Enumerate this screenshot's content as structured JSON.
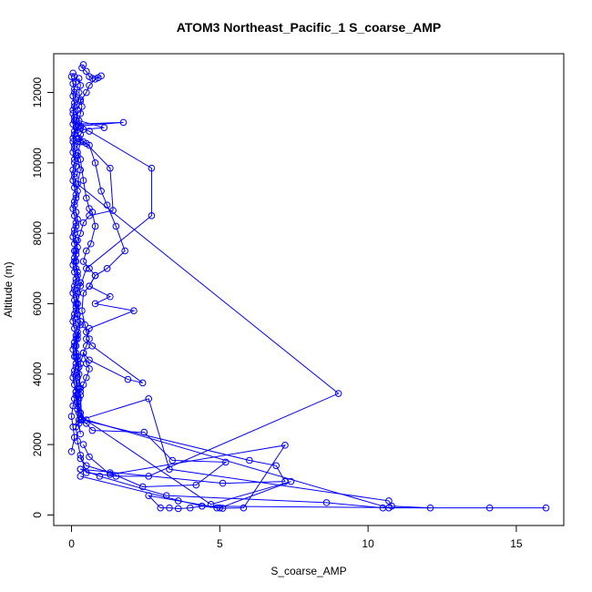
{
  "chart_data": {
    "type": "scatter",
    "title": "ATOM3 Northeast_Pacific_1 S_coarse_AMP",
    "xlabel": "S_coarse_AMP",
    "ylabel": "Altitude (m)",
    "xlim": [
      -0.6,
      16.6
    ],
    "ylim": [
      -300,
      13100
    ],
    "xticks": [
      0,
      5,
      10,
      15
    ],
    "xtick_labels": [
      "0",
      "5",
      "10",
      "15"
    ],
    "yticks": [
      0,
      2000,
      4000,
      6000,
      8000,
      10000,
      12000
    ],
    "ytick_labels": [
      "0",
      "2000",
      "4000",
      "6000",
      "8000",
      "10000",
      "12000"
    ],
    "grid": false,
    "color": "#0000ff",
    "marker": "open-circle",
    "connected": true,
    "series": [
      {
        "points": [
          [
            0.4,
            12790
          ],
          [
            0.35,
            12700
          ],
          [
            0.5,
            12600
          ],
          [
            0.6,
            12450
          ],
          [
            0.7,
            12400
          ],
          [
            0.9,
            12420
          ],
          [
            1.0,
            12470
          ],
          [
            0.8,
            12380
          ],
          [
            0.6,
            12200
          ],
          [
            0.5,
            12000
          ],
          [
            0.3,
            11750
          ],
          [
            0.2,
            11500
          ],
          [
            0.15,
            11200
          ],
          [
            0.2,
            11100
          ],
          [
            1.75,
            11150
          ],
          [
            0.3,
            11050
          ],
          [
            0.2,
            11000
          ],
          [
            0.1,
            10800
          ],
          [
            0.2,
            10600
          ],
          [
            0.5,
            10550
          ],
          [
            1.3,
            9850
          ],
          [
            1.4,
            8650
          ],
          [
            0.6,
            8500
          ],
          [
            0.4,
            8300
          ],
          [
            0.3,
            8000
          ],
          [
            0.2,
            7800
          ],
          [
            0.1,
            7500
          ],
          [
            0.15,
            7200
          ],
          [
            0.2,
            6900
          ],
          [
            0.3,
            6600
          ],
          [
            0.2,
            6300
          ],
          [
            0.15,
            6000
          ],
          [
            0.2,
            5700
          ],
          [
            0.3,
            5400
          ],
          [
            0.2,
            5100
          ],
          [
            0.15,
            4800
          ],
          [
            0.2,
            4500
          ],
          [
            0.25,
            4200
          ],
          [
            0.2,
            3900
          ],
          [
            0.15,
            3500
          ],
          [
            0.2,
            3200
          ],
          [
            0.3,
            2900
          ],
          [
            0.25,
            2700
          ],
          [
            0.5,
            2600
          ],
          [
            0.7,
            2400
          ],
          [
            2.45,
            2350
          ],
          [
            3.4,
            1550
          ],
          [
            5.2,
            1500
          ],
          [
            4.2,
            850
          ],
          [
            2.4,
            800
          ],
          [
            1.3,
            1200
          ],
          [
            0.5,
            1400
          ],
          [
            0.3,
            1600
          ]
        ]
      },
      {
        "points": [
          [
            0.3,
            11000
          ],
          [
            0.6,
            10900
          ],
          [
            2.7,
            9850
          ],
          [
            2.7,
            8500
          ],
          [
            0.5,
            7000
          ],
          [
            0.3,
            6500
          ],
          [
            0.2,
            6000
          ],
          [
            0.3,
            5500
          ],
          [
            0.2,
            5000
          ],
          [
            0.15,
            4500
          ],
          [
            0.25,
            4000
          ],
          [
            0.3,
            3600
          ],
          [
            0.2,
            3400
          ],
          [
            0.3,
            2800
          ],
          [
            4.7,
            300
          ],
          [
            7.4,
            950
          ],
          [
            5.0,
            200
          ],
          [
            3.6,
            400
          ],
          [
            2.6,
            550
          ],
          [
            3.0,
            200
          ],
          [
            3.3,
            200
          ],
          [
            3.6,
            180
          ],
          [
            4.0,
            200
          ],
          [
            4.4,
            250
          ],
          [
            4.9,
            200
          ],
          [
            5.1,
            190
          ],
          [
            5.8,
            200
          ],
          [
            7.2,
            1980
          ],
          [
            1.3,
            1150
          ],
          [
            0.6,
            1650
          ],
          [
            0.4,
            2000
          ]
        ]
      },
      {
        "points": [
          [
            0.2,
            10300
          ],
          [
            0.3,
            10100
          ],
          [
            0.4,
            9500
          ],
          [
            0.5,
            9000
          ],
          [
            0.6,
            8700
          ],
          [
            0.7,
            8600
          ],
          [
            0.8,
            8200
          ],
          [
            0.65,
            7700
          ],
          [
            0.5,
            7500
          ],
          [
            0.4,
            7200
          ],
          [
            0.6,
            7000
          ],
          [
            0.8,
            6800
          ],
          [
            0.6,
            6500
          ],
          [
            0.4,
            6300
          ],
          [
            0.35,
            5800
          ],
          [
            0.45,
            5400
          ],
          [
            0.5,
            5200
          ],
          [
            0.6,
            5000
          ],
          [
            0.5,
            4800
          ],
          [
            0.4,
            4600
          ],
          [
            0.5,
            4300
          ],
          [
            0.6,
            4150
          ],
          [
            0.5,
            3900
          ],
          [
            0.4,
            3700
          ],
          [
            0.3,
            3500
          ],
          [
            0.25,
            3300
          ],
          [
            0.2,
            3100
          ],
          [
            0.25,
            2900
          ],
          [
            0.5,
            2700
          ],
          [
            10.7,
            200
          ],
          [
            14.1,
            200
          ],
          [
            16.0,
            200
          ],
          [
            10.5,
            200
          ],
          [
            8.6,
            350
          ],
          [
            3.2,
            550
          ],
          [
            0.95,
            1100
          ],
          [
            0.3,
            1300
          ]
        ]
      },
      {
        "points": [
          [
            0.2,
            10700
          ],
          [
            0.4,
            10600
          ],
          [
            0.6,
            10500
          ],
          [
            0.8,
            10000
          ],
          [
            1.0,
            9200
          ],
          [
            1.2,
            8800
          ],
          [
            1.5,
            8200
          ],
          [
            1.8,
            7500
          ],
          [
            1.2,
            7000
          ],
          [
            0.8,
            6800
          ],
          [
            0.6,
            6500
          ],
          [
            1.3,
            6200
          ],
          [
            0.8,
            6000
          ],
          [
            2.1,
            5800
          ],
          [
            0.6,
            5300
          ],
          [
            0.5,
            5000
          ],
          [
            0.7,
            4800
          ],
          [
            2.4,
            3750
          ],
          [
            1.9,
            3850
          ],
          [
            0.6,
            4400
          ],
          [
            0.4,
            4600
          ],
          [
            0.3,
            4300
          ],
          [
            0.25,
            3600
          ],
          [
            0.3,
            3400
          ],
          [
            0.35,
            2700
          ],
          [
            6.0,
            1550
          ],
          [
            6.9,
            1400
          ],
          [
            7.2,
            950
          ],
          [
            5.1,
            900
          ],
          [
            0.3,
            1300
          ]
        ]
      },
      {
        "points": [
          [
            0.1,
            11200
          ],
          [
            0.3,
            10600
          ],
          [
            0.2,
            10200
          ],
          [
            0.3,
            9800
          ],
          [
            0.2,
            9400
          ],
          [
            9.0,
            3450
          ],
          [
            2.6,
            1100
          ],
          [
            1.5,
            1100
          ],
          [
            0.5,
            1200
          ],
          [
            0.3,
            1700
          ],
          [
            0.2,
            2100
          ],
          [
            0.15,
            2500
          ],
          [
            0.3,
            2700
          ],
          [
            2.6,
            3300
          ],
          [
            3.3,
            1300
          ],
          [
            10.7,
            400
          ],
          [
            10.8,
            250
          ],
          [
            12.1,
            200
          ],
          [
            4.4,
            250
          ],
          [
            0.3,
            1100
          ]
        ]
      },
      {
        "points": [
          [
            0.05,
            12550
          ],
          [
            0.1,
            12450
          ],
          [
            0.15,
            12300
          ],
          [
            0.1,
            12100
          ],
          [
            0.05,
            11900
          ],
          [
            0.1,
            11700
          ],
          [
            0.05,
            11500
          ],
          [
            0.1,
            11300
          ],
          [
            0.05,
            11100
          ],
          [
            0.1,
            10900
          ],
          [
            0.05,
            10700
          ],
          [
            0.1,
            10500
          ],
          [
            0.05,
            10300
          ],
          [
            0.1,
            10100
          ],
          [
            0.15,
            9900
          ],
          [
            0.1,
            9700
          ],
          [
            0.05,
            9500
          ],
          [
            0.1,
            9300
          ],
          [
            0.15,
            9100
          ],
          [
            0.1,
            8900
          ],
          [
            0.05,
            8700
          ],
          [
            0.1,
            8500
          ],
          [
            0.15,
            8300
          ],
          [
            0.1,
            8100
          ],
          [
            0.05,
            7900
          ],
          [
            0.1,
            7700
          ],
          [
            0.15,
            7500
          ],
          [
            0.1,
            7300
          ],
          [
            0.05,
            7100
          ],
          [
            0.1,
            6900
          ],
          [
            0.15,
            6700
          ],
          [
            0.1,
            6500
          ],
          [
            0.05,
            6300
          ],
          [
            0.1,
            6100
          ],
          [
            0.15,
            5900
          ],
          [
            0.1,
            5700
          ],
          [
            0.05,
            5500
          ],
          [
            0.1,
            5300
          ],
          [
            0.15,
            5100
          ],
          [
            0.1,
            4900
          ],
          [
            0.05,
            4700
          ],
          [
            0.1,
            4500
          ],
          [
            0.15,
            4300
          ],
          [
            0.1,
            4100
          ],
          [
            0.05,
            3900
          ],
          [
            0.1,
            3700
          ],
          [
            0.15,
            3500
          ],
          [
            0.1,
            3300
          ],
          [
            0.05,
            3100
          ],
          [
            0.0,
            2800
          ],
          [
            0.05,
            2500
          ],
          [
            0.1,
            2200
          ],
          [
            0.0,
            1800
          ]
        ]
      },
      {
        "points": [
          [
            0.0,
            12450
          ],
          [
            0.05,
            12250
          ],
          [
            0.1,
            12000
          ],
          [
            0.15,
            11800
          ],
          [
            0.1,
            11600
          ],
          [
            0.05,
            11400
          ],
          [
            0.1,
            11200
          ],
          [
            0.15,
            11000
          ],
          [
            0.1,
            10800
          ],
          [
            0.05,
            10600
          ],
          [
            0.1,
            10400
          ],
          [
            0.15,
            10200
          ],
          [
            0.1,
            10000
          ],
          [
            0.05,
            9800
          ],
          [
            0.1,
            9600
          ],
          [
            0.15,
            9400
          ],
          [
            0.2,
            9200
          ],
          [
            0.15,
            9000
          ],
          [
            0.1,
            8800
          ],
          [
            0.15,
            8600
          ],
          [
            0.2,
            8400
          ],
          [
            0.15,
            8200
          ],
          [
            0.1,
            8000
          ],
          [
            0.15,
            7800
          ],
          [
            0.2,
            7600
          ],
          [
            0.15,
            7400
          ],
          [
            0.1,
            7200
          ],
          [
            0.15,
            7000
          ],
          [
            0.2,
            6800
          ],
          [
            0.15,
            6600
          ],
          [
            0.1,
            6400
          ],
          [
            0.15,
            6200
          ],
          [
            0.2,
            6000
          ],
          [
            0.15,
            5800
          ],
          [
            0.1,
            5600
          ],
          [
            0.15,
            5400
          ],
          [
            0.2,
            5200
          ],
          [
            0.15,
            5000
          ],
          [
            0.1,
            4800
          ],
          [
            0.15,
            4600
          ],
          [
            0.2,
            4400
          ],
          [
            0.15,
            4200
          ],
          [
            0.1,
            4000
          ],
          [
            0.15,
            3800
          ],
          [
            0.2,
            3600
          ],
          [
            0.15,
            3400
          ],
          [
            0.2,
            3000
          ],
          [
            0.25,
            2600
          ],
          [
            0.3,
            2300
          ]
        ]
      },
      {
        "points": [
          [
            0.25,
            12400
          ],
          [
            0.3,
            12200
          ],
          [
            0.25,
            12000
          ],
          [
            0.3,
            11800
          ],
          [
            0.35,
            11600
          ],
          [
            0.3,
            11400
          ],
          [
            0.25,
            11200
          ],
          [
            1.1,
            11000
          ],
          [
            0.4,
            10950
          ],
          [
            0.3,
            10800
          ],
          [
            0.25,
            10700
          ]
        ]
      }
    ]
  }
}
